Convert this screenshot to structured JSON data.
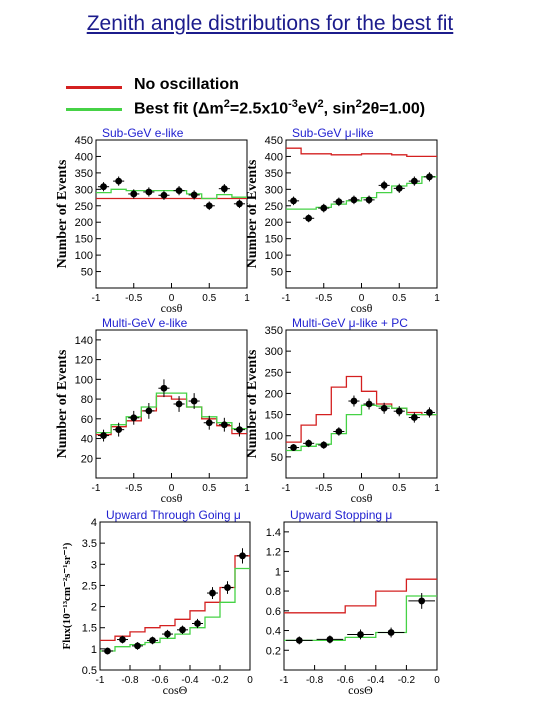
{
  "title": "Zenith angle distributions for the best fit",
  "legend": {
    "no_osc": {
      "label": "No oscillation",
      "color": "#d42020"
    },
    "best_fit": {
      "pre": "Best fit (Δm",
      "sup1": "2",
      "mid1": "=2.5x10",
      "sup2": "-3",
      "mid2": "eV",
      "sup3": "2",
      "mid3": ", sin",
      "sup4": "2",
      "post": "2θ=1.00)",
      "color": "#46d246"
    }
  },
  "colors": {
    "no_osc": "#d42020",
    "best_fit": "#46d246",
    "panel_title": "#1f1fd0",
    "data": "#000000"
  },
  "chart_data": [
    {
      "id": "sub-gev-e",
      "type": "line",
      "title": "Sub-GeV e-like",
      "ylabel": "Number of Events",
      "xlabel": "cosθ",
      "xlim": [
        -1,
        1
      ],
      "ylim": [
        0,
        450
      ],
      "xticks": [
        -1,
        -0.5,
        0,
        0.5,
        1
      ],
      "xtick_labels": [
        "-1",
        "-0.5",
        "0",
        "0.5",
        "1"
      ],
      "yticks": [
        50,
        100,
        150,
        200,
        250,
        300,
        350,
        400,
        450
      ],
      "bins": [
        -1,
        -0.8,
        -0.6,
        -0.4,
        -0.2,
        0,
        0.2,
        0.4,
        0.6,
        0.8,
        1
      ],
      "no_osc": [
        272,
        272,
        272,
        272,
        272,
        272,
        272,
        272,
        272,
        272
      ],
      "best_fit": [
        290,
        300,
        296,
        296,
        296,
        296,
        286,
        272,
        284,
        276
      ],
      "data_y": [
        308,
        325,
        286,
        292,
        282,
        296,
        283,
        250,
        302,
        256
      ],
      "data_err": [
        14,
        14,
        14,
        14,
        14,
        14,
        14,
        13,
        14,
        13
      ]
    },
    {
      "id": "sub-gev-mu",
      "type": "line",
      "title": "Sub-GeV μ-like",
      "ylabel": "Number of Events",
      "xlabel": "cosθ",
      "xlim": [
        -1,
        1
      ],
      "ylim": [
        0,
        450
      ],
      "xticks": [
        -1,
        -0.5,
        0,
        0.5,
        1
      ],
      "xtick_labels": [
        "-1",
        "-0.5",
        "0",
        "0.5",
        "1"
      ],
      "yticks": [
        50,
        100,
        150,
        200,
        250,
        300,
        350,
        400,
        450
      ],
      "bins": [
        -1,
        -0.8,
        -0.6,
        -0.4,
        -0.2,
        0,
        0.2,
        0.4,
        0.6,
        0.8,
        1
      ],
      "no_osc": [
        425,
        408,
        408,
        405,
        405,
        408,
        408,
        405,
        400,
        400
      ],
      "best_fit": [
        240,
        240,
        245,
        255,
        265,
        275,
        290,
        310,
        318,
        338
      ],
      "data_y": [
        265,
        212,
        243,
        262,
        268,
        268,
        312,
        303,
        325,
        338
      ],
      "data_err": [
        13,
        12,
        13,
        13,
        13,
        13,
        14,
        14,
        14,
        14
      ]
    },
    {
      "id": "multi-gev-e",
      "type": "line",
      "title": "Multi-GeV e-like",
      "ylabel": "Number of Events",
      "xlabel": "cosθ",
      "xlim": [
        -1,
        1
      ],
      "ylim": [
        0,
        150
      ],
      "xticks": [
        -1,
        -0.5,
        0,
        0.5,
        1
      ],
      "xtick_labels": [
        "-1",
        "-0.5",
        "0",
        "0.5",
        "1"
      ],
      "yticks": [
        20,
        40,
        60,
        80,
        100,
        120,
        140
      ],
      "bins": [
        -1,
        -0.8,
        -0.6,
        -0.4,
        -0.2,
        0,
        0.2,
        0.4,
        0.6,
        0.8,
        1
      ],
      "no_osc": [
        44,
        52,
        58,
        68,
        83,
        80,
        72,
        60,
        53,
        45
      ],
      "best_fit": [
        46,
        54,
        62,
        72,
        86,
        86,
        72,
        62,
        56,
        50
      ],
      "data_y": [
        43,
        49,
        61,
        68,
        91,
        75,
        78,
        56,
        54,
        49
      ],
      "data_err": [
        6,
        7,
        7,
        8,
        9,
        8,
        8,
        7,
        7,
        7
      ]
    },
    {
      "id": "multi-gev-mu",
      "type": "line",
      "title": "Multi-GeV μ-like + PC",
      "ylabel": "Number of Events",
      "xlabel": "cosθ",
      "xlim": [
        -1,
        1
      ],
      "ylim": [
        0,
        350
      ],
      "xticks": [
        -1,
        -0.5,
        0,
        0.5,
        1
      ],
      "xtick_labels": [
        "-1",
        "-0.5",
        "0",
        "0.5",
        "1"
      ],
      "yticks": [
        50,
        100,
        150,
        200,
        250,
        300,
        350
      ],
      "bins": [
        -1,
        -0.8,
        -0.6,
        -0.4,
        -0.2,
        0,
        0.2,
        0.4,
        0.6,
        0.8,
        1
      ],
      "no_osc": [
        85,
        125,
        150,
        215,
        240,
        205,
        175,
        165,
        155,
        150
      ],
      "best_fit": [
        65,
        75,
        80,
        105,
        150,
        172,
        170,
        165,
        150,
        150
      ],
      "data_y": [
        72,
        82,
        78,
        110,
        182,
        175,
        165,
        158,
        143,
        155
      ],
      "data_err": [
        8,
        9,
        9,
        10,
        13,
        13,
        13,
        12,
        12,
        12
      ]
    },
    {
      "id": "upward-through-going",
      "type": "line",
      "title": "Upward Through Going μ",
      "ylabel": "Flux(10⁻¹³cm⁻²s⁻¹sr⁻¹)",
      "xlabel": "cosΘ",
      "xlim": [
        -1,
        0
      ],
      "ylim": [
        0.5,
        4
      ],
      "xticks": [
        -1,
        -0.8,
        -0.6,
        -0.4,
        -0.2,
        0
      ],
      "xtick_labels": [
        "-1",
        "-0.8",
        "-0.6",
        "-0.4",
        "-0.2",
        "0"
      ],
      "yticks": [
        0.5,
        1,
        1.5,
        2,
        2.5,
        3,
        3.5,
        4
      ],
      "bins": [
        -1,
        -0.9,
        -0.8,
        -0.7,
        -0.6,
        -0.5,
        -0.4,
        -0.3,
        -0.2,
        -0.1,
        0
      ],
      "no_osc": [
        1.2,
        1.3,
        1.4,
        1.5,
        1.55,
        1.7,
        1.9,
        2.1,
        2.45,
        3.2
      ],
      "best_fit": [
        0.95,
        1.05,
        1.1,
        1.15,
        1.25,
        1.35,
        1.5,
        1.75,
        2.1,
        2.9
      ],
      "data_y": [
        0.95,
        1.22,
        1.07,
        1.2,
        1.35,
        1.45,
        1.6,
        2.32,
        2.45,
        3.2
      ],
      "data_err": [
        0.08,
        0.09,
        0.09,
        0.09,
        0.1,
        0.1,
        0.11,
        0.14,
        0.15,
        0.18
      ]
    },
    {
      "id": "upward-stopping",
      "type": "line",
      "title": "Upward Stopping μ",
      "ylabel": "",
      "xlabel": "cosΘ",
      "xlim": [
        -1,
        0
      ],
      "ylim": [
        0,
        1.5
      ],
      "xticks": [
        -1,
        -0.8,
        -0.6,
        -0.4,
        -0.2,
        0
      ],
      "xtick_labels": [
        "-1",
        "-0.8",
        "-0.6",
        "-0.4",
        "-0.2",
        "0"
      ],
      "yticks": [
        0.2,
        0.4,
        0.6,
        0.8,
        1,
        1.2,
        1.4
      ],
      "bins": [
        -1,
        -0.8,
        -0.6,
        -0.4,
        -0.2,
        0
      ],
      "no_osc": [
        0.58,
        0.58,
        0.65,
        0.8,
        0.92
      ],
      "best_fit": [
        0.3,
        0.3,
        0.33,
        0.38,
        0.75
      ],
      "data_y": [
        0.3,
        0.31,
        0.36,
        0.38,
        0.7
      ],
      "data_err": [
        0.04,
        0.04,
        0.05,
        0.05,
        0.08
      ]
    }
  ]
}
